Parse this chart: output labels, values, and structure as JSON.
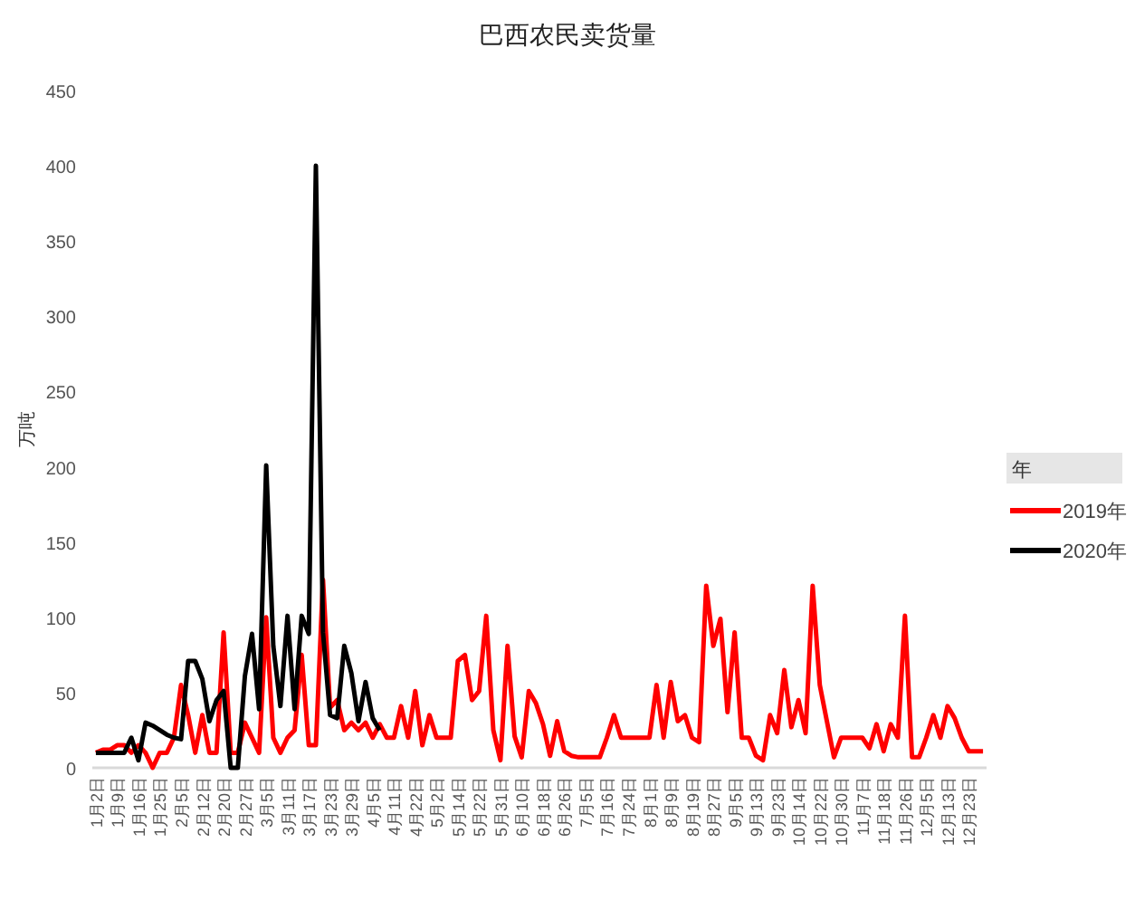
{
  "chart_data": {
    "type": "line",
    "title": "巴西农民卖货量",
    "ylabel": "万吨",
    "legend_title": "年",
    "legend": "right",
    "categories": [
      "1月2日",
      null,
      null,
      "1月9日",
      null,
      null,
      "1月16日",
      null,
      null,
      "1月25日",
      null,
      null,
      "2月5日",
      null,
      null,
      "2月12日",
      null,
      null,
      "2月20日",
      null,
      null,
      "2月27日",
      null,
      null,
      "3月5日",
      null,
      null,
      "3月11日",
      null,
      null,
      "3月17日",
      null,
      null,
      "3月23日",
      null,
      null,
      "3月29日",
      null,
      null,
      "4月5日",
      null,
      null,
      "4月11日",
      null,
      null,
      "4月22日",
      null,
      null,
      "5月2日",
      null,
      null,
      "5月14日",
      null,
      null,
      "5月22日",
      null,
      null,
      "5月31日",
      null,
      null,
      "6月10日",
      null,
      null,
      "6月18日",
      null,
      null,
      "6月26日",
      null,
      null,
      "7月5日",
      null,
      null,
      "7月16日",
      null,
      null,
      "7月24日",
      null,
      null,
      "8月1日",
      null,
      null,
      "8月9日",
      null,
      null,
      "8月19日",
      null,
      null,
      "8月27日",
      null,
      null,
      "9月5日",
      null,
      null,
      "9月13日",
      null,
      null,
      "9月23日",
      null,
      null,
      "10月14日",
      null,
      null,
      "10月22日",
      null,
      null,
      "10月30日",
      null,
      null,
      "11月7日",
      null,
      null,
      "11月18日",
      null,
      null,
      "11月26日",
      null,
      null,
      "12月5日",
      null,
      null,
      "12月13日",
      null,
      null,
      "12月23日",
      null,
      null
    ],
    "series": [
      {
        "name": "2019年",
        "color": "#ff0000",
        "values": [
          10,
          12,
          12,
          15,
          15,
          10,
          15,
          10,
          0,
          10,
          10,
          20,
          55,
          35,
          10,
          35,
          10,
          10,
          90,
          10,
          10,
          30,
          20,
          10,
          100,
          20,
          10,
          20,
          25,
          75,
          15,
          15,
          125,
          40,
          45,
          25,
          30,
          25,
          30,
          20,
          29,
          20,
          20,
          41,
          20,
          51,
          15,
          35,
          20,
          20,
          20,
          71,
          75,
          45,
          51,
          101,
          25,
          5,
          81,
          21,
          7,
          51,
          43,
          29,
          8,
          31,
          11,
          8,
          7,
          7,
          7,
          7,
          20,
          35,
          20,
          20,
          20,
          20,
          20,
          55,
          20,
          57,
          31,
          35,
          20,
          17,
          121,
          81,
          99,
          37,
          90,
          20,
          20,
          8,
          5,
          35,
          23,
          65,
          27,
          45,
          23,
          121,
          55,
          31,
          7,
          20,
          20,
          20,
          20,
          13,
          29,
          11,
          29,
          20,
          101,
          7,
          7,
          20,
          35,
          20,
          41,
          33,
          20,
          11,
          11,
          11
        ]
      },
      {
        "name": "2020年",
        "color": "#000000",
        "values": [
          10,
          10,
          10,
          10,
          10,
          20,
          5,
          30,
          28,
          25,
          22,
          20,
          19,
          71,
          71,
          59,
          31,
          45,
          51,
          0,
          0,
          61,
          89,
          39,
          201,
          81,
          41,
          101,
          39,
          101,
          89,
          400,
          90,
          35,
          33,
          81,
          63,
          31,
          57,
          33,
          25,
          null,
          null,
          null,
          null,
          null,
          null,
          null,
          null,
          null,
          null,
          null,
          null,
          null,
          null,
          null,
          null,
          null,
          null,
          null,
          null,
          null,
          null,
          null,
          null,
          null,
          null,
          null,
          null,
          null,
          null,
          null,
          null,
          null,
          null,
          null,
          null,
          null,
          null,
          null,
          null,
          null,
          null,
          null,
          null,
          null,
          null,
          null,
          null,
          null,
          null,
          null,
          null,
          null,
          null,
          null,
          null,
          null,
          null,
          null,
          null,
          null,
          null,
          null,
          null,
          null,
          null,
          null,
          null,
          null,
          null,
          null,
          null,
          null,
          null,
          null,
          null,
          null,
          null,
          null,
          null,
          null,
          null,
          null,
          null,
          null
        ]
      }
    ],
    "ylim": [
      0,
      450
    ],
    "yticks": [
      0,
      50,
      100,
      150,
      200,
      250,
      300,
      350,
      400,
      450
    ]
  }
}
